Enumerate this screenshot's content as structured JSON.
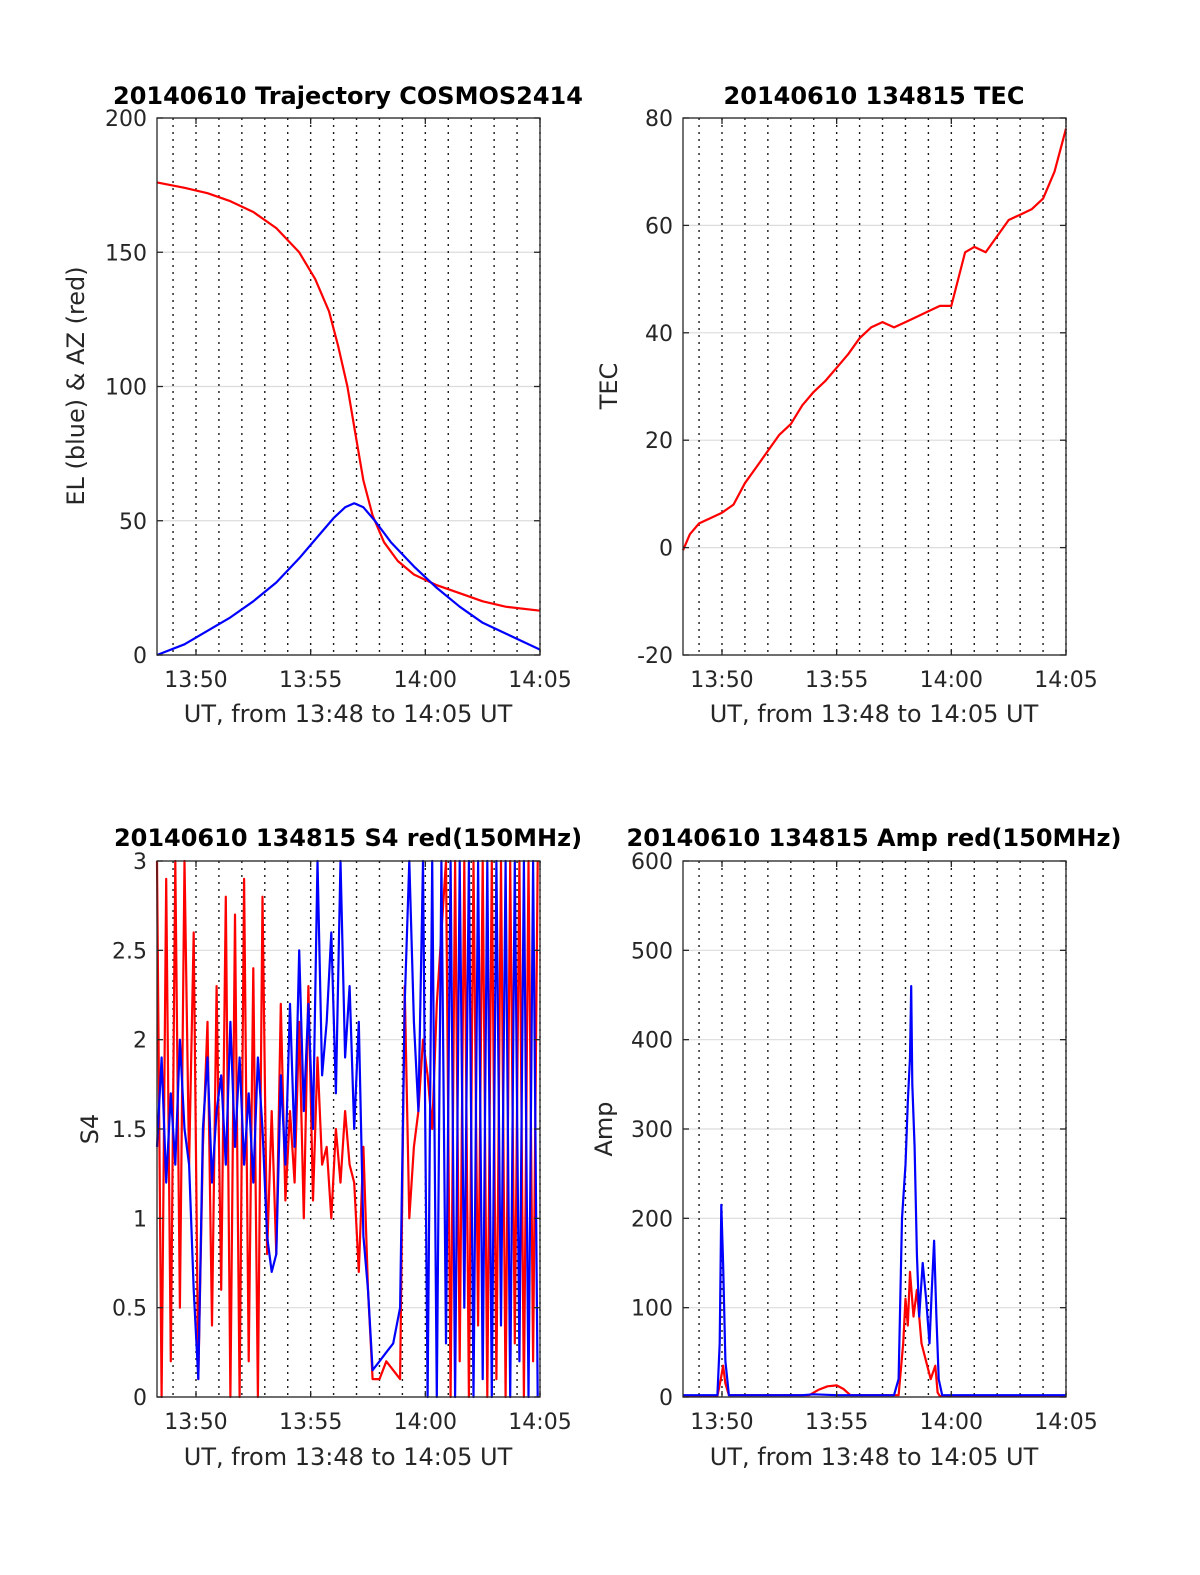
{
  "chart_data": [
    {
      "type": "line",
      "title": "20140610 Trajectory COSMOS2414",
      "xlabel": "UT, from 13:48 to 14:05 UT",
      "ylabel": "EL (blue) & AZ (red)",
      "x_unit": "minutes of hour 13 (60 = 14:00)",
      "xlim": [
        48.3,
        65
      ],
      "ylim": [
        0,
        200
      ],
      "xticks": [
        "13:50",
        "13:55",
        "14:00",
        "14:05"
      ],
      "xtick_values": [
        50,
        55,
        60,
        65
      ],
      "yticks": [
        "0",
        "50",
        "100",
        "150",
        "200"
      ],
      "ytick_values": [
        0,
        50,
        100,
        150,
        200
      ],
      "minor_x_grid_step_min": 1,
      "series": [
        {
          "color": "#ff0000",
          "x": [
            48.3,
            49.5,
            50.5,
            51.5,
            52.5,
            53.5,
            54.5,
            55.2,
            55.8,
            56.2,
            56.6,
            57.0,
            57.3,
            57.7,
            58.2,
            58.8,
            59.5,
            60.5,
            61.5,
            62.5,
            63.5,
            65.0
          ],
          "values": [
            176,
            174,
            172,
            169,
            165,
            159,
            150,
            140,
            128,
            115,
            100,
            80,
            65,
            52,
            42,
            35,
            30,
            26,
            23,
            20,
            18,
            16.5
          ]
        },
        {
          "color": "#0000ff",
          "x": [
            48.3,
            49.5,
            50.5,
            51.5,
            52.5,
            53.5,
            54.5,
            55.3,
            56.0,
            56.5,
            56.9,
            57.3,
            57.8,
            58.5,
            59.5,
            60.5,
            61.5,
            62.5,
            63.5,
            65.0
          ],
          "values": [
            0,
            4,
            9,
            14,
            20,
            27,
            36,
            44,
            51,
            55,
            56.5,
            55,
            50,
            42,
            33,
            25,
            18,
            12,
            8,
            2
          ]
        }
      ]
    },
    {
      "type": "line",
      "title": "20140610 134815 TEC",
      "xlabel": "UT, from 13:48 to 14:05 UT",
      "ylabel": "TEC",
      "x_unit": "minutes of hour 13 (60 = 14:00)",
      "xlim": [
        48.3,
        65
      ],
      "ylim": [
        -20,
        80
      ],
      "xticks": [
        "13:50",
        "13:55",
        "14:00",
        "14:05"
      ],
      "xtick_values": [
        50,
        55,
        60,
        65
      ],
      "yticks": [
        "-20",
        "0",
        "20",
        "40",
        "60",
        "80"
      ],
      "ytick_values": [
        -20,
        0,
        20,
        40,
        60,
        80
      ],
      "minor_x_grid_step_min": 1,
      "series": [
        {
          "color": "#ff0000",
          "x": [
            48.3,
            48.6,
            49.0,
            49.5,
            50.0,
            50.5,
            51.0,
            51.5,
            52.0,
            52.5,
            53.0,
            53.5,
            54.0,
            54.5,
            55.0,
            55.5,
            56.0,
            56.5,
            57.0,
            57.5,
            58.0,
            58.5,
            59.0,
            59.5,
            60.0,
            60.3,
            60.6,
            61.0,
            61.5,
            62.0,
            62.5,
            63.0,
            63.5,
            64.0,
            64.5,
            65.0
          ],
          "values": [
            -0.5,
            2.5,
            4.5,
            5.5,
            6.5,
            8,
            12,
            15,
            18,
            21,
            23,
            26.5,
            29,
            31,
            33.5,
            36,
            39,
            41,
            42,
            41,
            42,
            43,
            44,
            45,
            45,
            50,
            55,
            56,
            55,
            58,
            61,
            62,
            63,
            65,
            70,
            78
          ]
        }
      ]
    },
    {
      "type": "line",
      "title": "20140610 134815 S4 red(150MHz)",
      "xlabel": "UT, from 13:48 to 14:05 UT",
      "ylabel": "S4",
      "x_unit": "minutes of hour 13 (60 = 14:00)",
      "xlim": [
        48.3,
        65
      ],
      "ylim": [
        0,
        3
      ],
      "xticks": [
        "13:50",
        "13:55",
        "14:00",
        "14:05"
      ],
      "xtick_values": [
        50,
        55,
        60,
        65
      ],
      "yticks": [
        "0",
        "0.5",
        "1",
        "1.5",
        "2",
        "2.5",
        "3"
      ],
      "ytick_values": [
        0,
        0.5,
        1,
        1.5,
        2,
        2.5,
        3
      ],
      "minor_x_grid_step_min": 1,
      "series": [
        {
          "color": "#ff0000",
          "x": [
            48.3,
            48.5,
            48.7,
            48.9,
            49.1,
            49.3,
            49.5,
            49.7,
            49.9,
            50.1,
            50.3,
            50.5,
            50.7,
            50.9,
            51.1,
            51.3,
            51.5,
            51.7,
            51.9,
            52.1,
            52.3,
            52.5,
            52.7,
            52.9,
            53.1,
            53.3,
            53.5,
            53.7,
            53.9,
            54.1,
            54.3,
            54.5,
            54.7,
            54.9,
            55.1,
            55.3,
            55.5,
            55.7,
            55.9,
            56.1,
            56.3,
            56.5,
            56.7,
            56.9,
            57.1,
            57.3,
            57.5,
            57.7,
            58.0,
            58.3,
            58.6,
            58.9,
            59.1,
            59.3,
            59.5,
            59.7,
            59.9,
            60.1,
            60.3,
            60.5,
            60.7,
            60.9,
            61.1,
            61.3,
            61.5,
            61.7,
            61.9,
            62.1,
            62.3,
            62.5,
            62.7,
            62.9,
            63.1,
            63.3,
            63.5,
            63.7,
            63.9,
            64.1,
            64.3,
            64.5,
            64.7,
            64.9
          ],
          "values": [
            3,
            0,
            2.9,
            0.2,
            3,
            0.5,
            3,
            1.3,
            2.6,
            0.1,
            1.4,
            2.1,
            0.4,
            2.3,
            0.6,
            2.8,
            0,
            2.7,
            0,
            2.9,
            0.2,
            2.4,
            0,
            2.8,
            0.8,
            1.6,
            0.8,
            2.2,
            1.1,
            1.6,
            1.2,
            2.1,
            1.0,
            2.3,
            1.1,
            1.9,
            1.3,
            1.4,
            1.0,
            1.5,
            1.2,
            1.6,
            1.3,
            1.2,
            0.7,
            1.4,
            0.6,
            0.1,
            0.1,
            0.2,
            0.15,
            0.1,
            2.3,
            1.0,
            1.4,
            1.6,
            2.0,
            1.8,
            1.5,
            2.2,
            2.6,
            3,
            0,
            3,
            0.2,
            3,
            0,
            3,
            0.4,
            3,
            0,
            3,
            0.1,
            3,
            0,
            3,
            0.3,
            3,
            0,
            3,
            0.2,
            3
          ]
        },
        {
          "color": "#0000ff",
          "x": [
            48.3,
            48.5,
            48.7,
            48.9,
            49.1,
            49.3,
            49.5,
            49.7,
            49.9,
            50.1,
            50.3,
            50.5,
            50.7,
            50.9,
            51.1,
            51.3,
            51.5,
            51.7,
            51.9,
            52.1,
            52.3,
            52.5,
            52.7,
            52.9,
            53.1,
            53.3,
            53.5,
            53.7,
            53.9,
            54.1,
            54.3,
            54.5,
            54.7,
            54.9,
            55.1,
            55.3,
            55.5,
            55.7,
            55.9,
            56.1,
            56.3,
            56.5,
            56.7,
            56.9,
            57.1,
            57.3,
            57.5,
            57.7,
            58.0,
            58.3,
            58.6,
            58.9,
            59.1,
            59.3,
            59.5,
            59.7,
            59.9,
            60.1,
            60.3,
            60.5,
            60.7,
            60.9,
            61.1,
            61.3,
            61.5,
            61.7,
            61.9,
            62.1,
            62.3,
            62.5,
            62.7,
            62.9,
            63.1,
            63.3,
            63.5,
            63.7,
            63.9,
            64.1,
            64.3,
            64.5,
            64.7,
            64.9
          ],
          "values": [
            1.4,
            1.9,
            1.2,
            1.7,
            1.3,
            2.0,
            1.5,
            1.3,
            0.6,
            0.1,
            1.5,
            1.9,
            1.2,
            1.6,
            1.8,
            1.3,
            2.1,
            1.4,
            1.9,
            1.3,
            1.7,
            1.2,
            1.9,
            1.5,
            0.9,
            0.7,
            0.8,
            1.8,
            1.3,
            2.2,
            1.4,
            2.5,
            1.6,
            2.2,
            1.5,
            3,
            1.8,
            2.1,
            2.6,
            1.7,
            3,
            1.9,
            2.3,
            1.5,
            2.1,
            0.9,
            0.6,
            0.15,
            0.2,
            0.25,
            0.3,
            0.5,
            2.2,
            3,
            2.1,
            1.6,
            3,
            0,
            3,
            0,
            3,
            0.3,
            3,
            0,
            3,
            0.5,
            3,
            0,
            3,
            0.1,
            3,
            0,
            3,
            0.4,
            3,
            0,
            3,
            0.2,
            3,
            0,
            3,
            0
          ]
        }
      ]
    },
    {
      "type": "line",
      "title": "20140610 134815 Amp red(150MHz)",
      "xlabel": "UT, from 13:48 to 14:05 UT",
      "ylabel": "Amp",
      "x_unit": "minutes of hour 13 (60 = 14:00)",
      "xlim": [
        48.3,
        65
      ],
      "ylim": [
        0,
        600
      ],
      "xticks": [
        "13:50",
        "13:55",
        "14:00",
        "14:05"
      ],
      "xtick_values": [
        50,
        55,
        60,
        65
      ],
      "yticks": [
        "0",
        "100",
        "200",
        "300",
        "400",
        "500",
        "600"
      ],
      "ytick_values": [
        0,
        100,
        200,
        300,
        400,
        500,
        600
      ],
      "minor_x_grid_step_min": 1,
      "series": [
        {
          "color": "#ff0000",
          "x": [
            48.3,
            49.8,
            49.95,
            50.05,
            50.15,
            50.3,
            53.8,
            54.2,
            54.6,
            55.0,
            55.3,
            55.6,
            57.7,
            57.9,
            58.0,
            58.1,
            58.2,
            58.35,
            58.5,
            58.7,
            58.9,
            59.1,
            59.3,
            59.4,
            59.5,
            65.0
          ],
          "values": [
            1,
            1,
            20,
            35,
            15,
            2,
            2,
            8,
            12,
            13,
            9,
            2,
            2,
            60,
            110,
            80,
            140,
            90,
            120,
            60,
            40,
            20,
            35,
            5,
            1,
            1
          ]
        },
        {
          "color": "#0000ff",
          "x": [
            48.3,
            49.8,
            49.9,
            49.97,
            50.05,
            50.15,
            50.3,
            53.5,
            54.0,
            55.0,
            57.5,
            57.7,
            57.85,
            58.0,
            58.1,
            58.2,
            58.25,
            58.3,
            58.4,
            58.5,
            58.6,
            58.75,
            58.9,
            59.05,
            59.15,
            59.25,
            59.35,
            59.45,
            59.6,
            65.0
          ],
          "values": [
            2,
            2,
            60,
            215,
            150,
            40,
            2,
            2,
            3,
            2,
            2,
            20,
            200,
            260,
            330,
            380,
            460,
            350,
            280,
            160,
            90,
            150,
            110,
            60,
            120,
            175,
            90,
            20,
            2,
            2
          ]
        }
      ]
    }
  ]
}
